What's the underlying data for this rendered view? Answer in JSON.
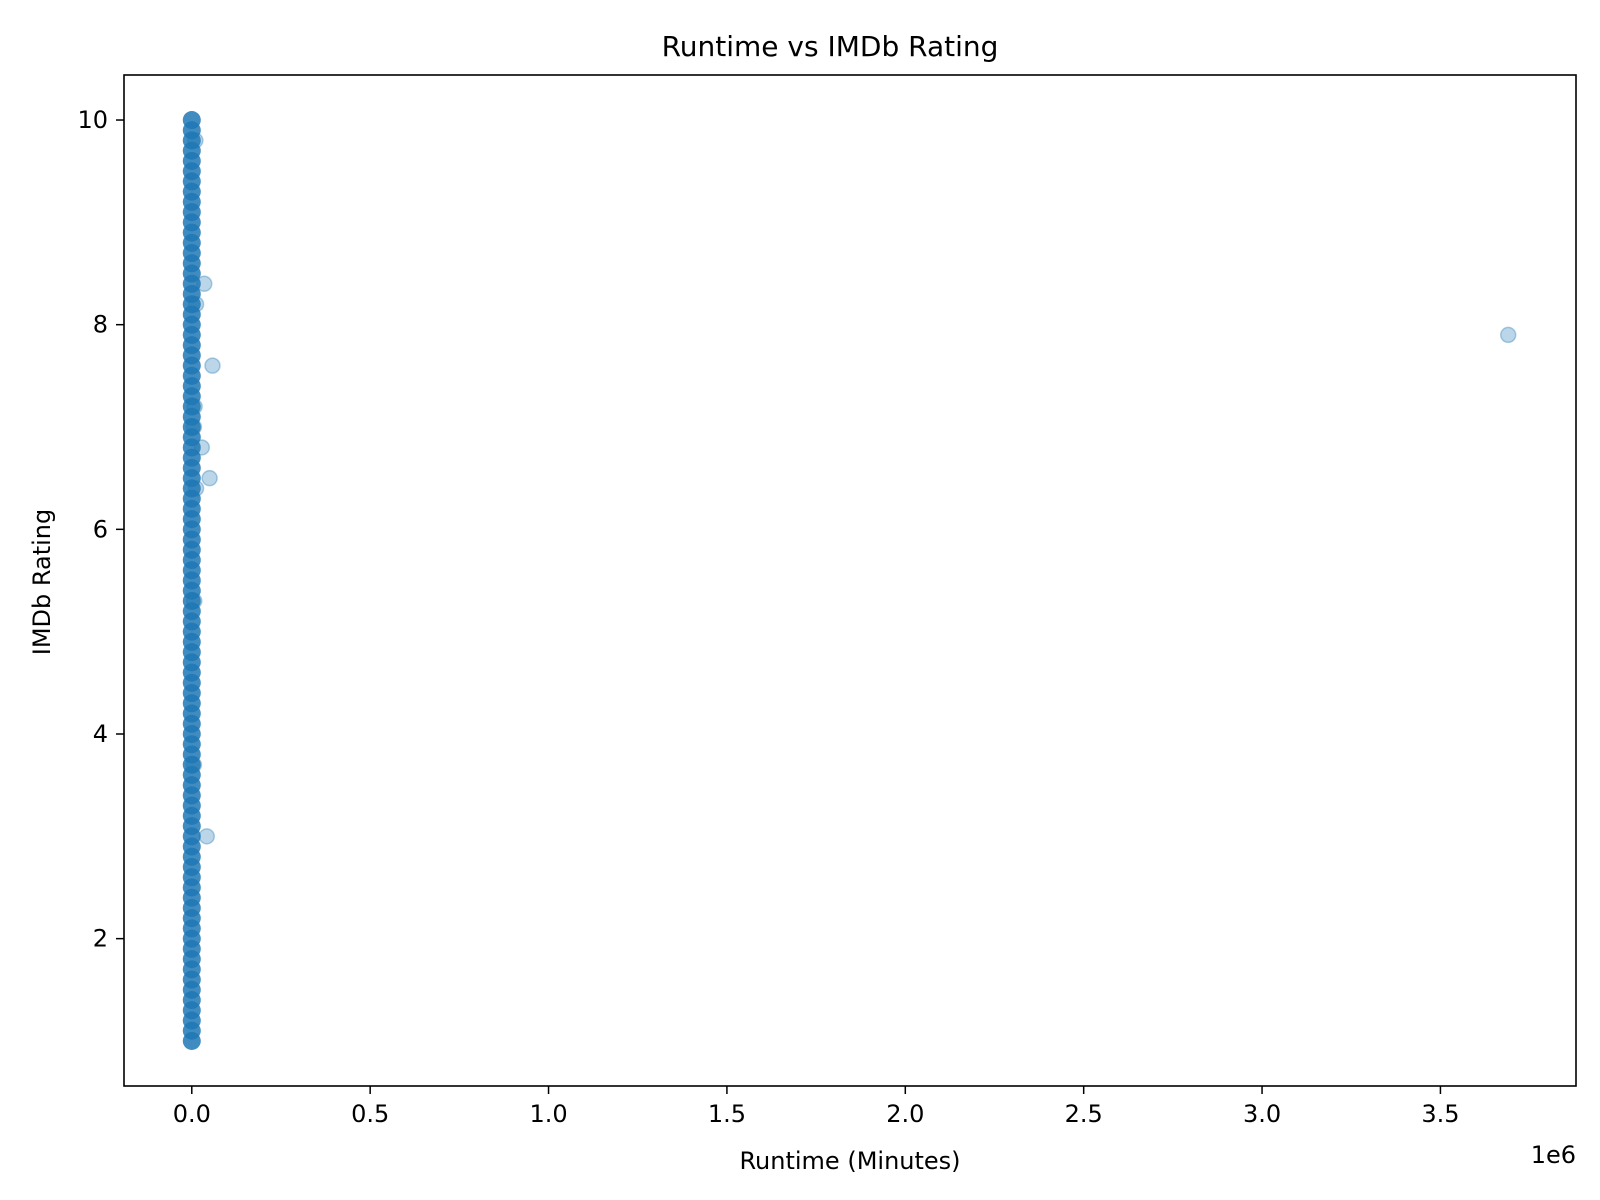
{
  "chart_data": {
    "type": "scatter",
    "title": "Runtime vs IMDb Rating",
    "xlabel": "Runtime (Minutes)",
    "ylabel": "IMDb Rating",
    "x_offset_label": "1e6",
    "x_scale": 1000000,
    "xlim": [
      -0.19,
      3.88
    ],
    "ylim": [
      0.56,
      10.44
    ],
    "x_ticks": [
      0.0,
      0.5,
      1.0,
      1.5,
      2.0,
      2.5,
      3.0,
      3.5
    ],
    "x_tick_labels": [
      "0.0",
      "0.5",
      "1.0",
      "1.5",
      "2.0",
      "2.5",
      "3.0",
      "3.5"
    ],
    "y_ticks": [
      2,
      4,
      6,
      8,
      10
    ],
    "y_tick_labels": [
      "2",
      "4",
      "6",
      "8",
      "10"
    ],
    "grid": false,
    "legend": "none",
    "marker_color": "#1f77b4",
    "marker_alpha": 0.3,
    "series": [
      {
        "cluster": {
          "x": 0.0,
          "y_min": 1.0,
          "y_max": 10.0,
          "y_step": 0.1
        },
        "points": [
          {
            "x": 0.01,
            "y": 9.8
          },
          {
            "x": 0.035,
            "y": 8.4
          },
          {
            "x": 0.012,
            "y": 8.2
          },
          {
            "x": 0.058,
            "y": 7.6
          },
          {
            "x": 0.008,
            "y": 7.2
          },
          {
            "x": 0.006,
            "y": 7.0
          },
          {
            "x": 0.028,
            "y": 6.8
          },
          {
            "x": 0.05,
            "y": 6.5
          },
          {
            "x": 0.012,
            "y": 6.4
          },
          {
            "x": 0.007,
            "y": 5.3
          },
          {
            "x": 0.006,
            "y": 3.7
          },
          {
            "x": 0.042,
            "y": 3.0
          },
          {
            "x": 3.69,
            "y": 7.9
          }
        ]
      }
    ]
  }
}
